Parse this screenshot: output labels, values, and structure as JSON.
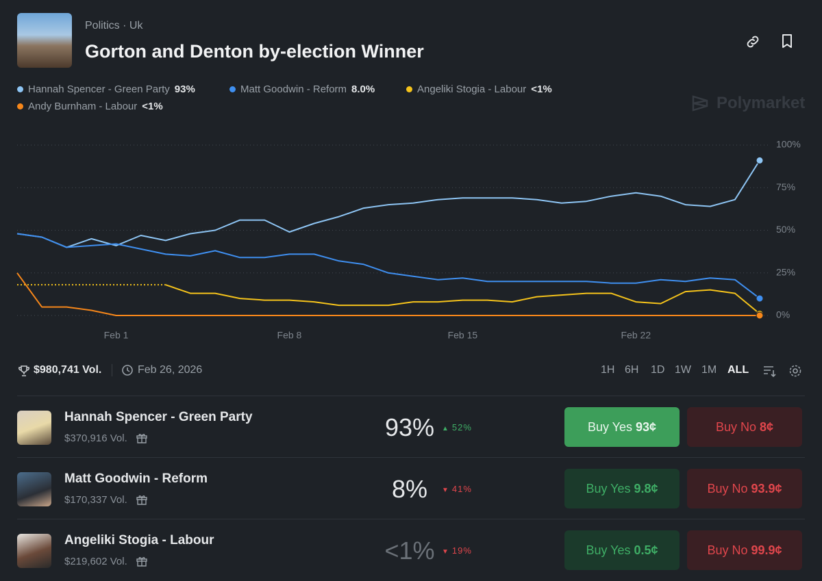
{
  "header": {
    "category": "Politics",
    "subcategory": "Uk",
    "title": "Gorton and Denton by-election Winner"
  },
  "brand": "Polymarket",
  "chart_data": {
    "type": "line",
    "categories": [
      null,
      null,
      null,
      null,
      "Feb 1",
      null,
      null,
      null,
      null,
      null,
      null,
      "Feb 8",
      null,
      null,
      null,
      null,
      null,
      null,
      "Feb 15",
      null,
      null,
      null,
      null,
      null,
      null,
      "Feb 22",
      null,
      null,
      null,
      null,
      null
    ],
    "series": [
      {
        "name": "Hannah Spencer - Green Party",
        "color": "#8ec5f4",
        "current": "93%",
        "values": [
          48,
          46,
          40,
          45,
          41,
          47,
          44,
          48,
          50,
          56,
          56,
          49,
          54,
          58,
          63,
          65,
          66,
          68,
          69,
          69,
          69,
          68,
          66,
          67,
          70,
          72,
          70,
          65,
          64,
          68,
          91
        ]
      },
      {
        "name": "Matt Goodwin - Reform",
        "color": "#3f8ff0",
        "current": "8.0%",
        "values": [
          48,
          46,
          40,
          41,
          42,
          39,
          36,
          35,
          38,
          34,
          34,
          36,
          36,
          32,
          30,
          25,
          23,
          21,
          22,
          20,
          20,
          20,
          20,
          20,
          19,
          19,
          21,
          20,
          22,
          21,
          10
        ]
      },
      {
        "name": "Angeliki Stogia - Labour",
        "color": "#f5c31b",
        "current": "<1%",
        "values": [
          null,
          null,
          null,
          null,
          null,
          null,
          18,
          13,
          13,
          10,
          9,
          9,
          8,
          6,
          6,
          6,
          8,
          8,
          9,
          9,
          8,
          11,
          12,
          13,
          13,
          8,
          7,
          14,
          15,
          13,
          1
        ]
      },
      {
        "name": "Andy Burnham - Labour",
        "color": "#f7871a",
        "current": "<1%",
        "values": [
          25,
          5,
          5,
          3,
          0,
          0,
          0,
          0,
          0,
          0,
          0,
          0,
          0,
          0,
          0,
          0,
          0,
          0,
          0,
          0,
          0,
          0,
          0,
          0,
          0,
          0,
          0,
          0,
          0,
          0,
          0
        ]
      }
    ],
    "ylim": [
      0,
      100
    ],
    "yticks": [
      {
        "value": 0,
        "label": "0%"
      },
      {
        "value": 25,
        "label": "25%"
      },
      {
        "value": 50,
        "label": "50%"
      },
      {
        "value": 75,
        "label": "75%"
      },
      {
        "value": 100,
        "label": "100%"
      }
    ],
    "grid": true
  },
  "stats": {
    "volume": "$980,741 Vol.",
    "end_date": "Feb 26, 2026"
  },
  "ranges": [
    "1H",
    "6H",
    "1D",
    "1W",
    "1M",
    "ALL"
  ],
  "active_range": "ALL",
  "outcomes": [
    {
      "name": "Hannah Spencer - Green Party",
      "volume": "$370,916 Vol.",
      "chance": "93%",
      "change": "52%",
      "direction": "up",
      "yes_label": "Buy Yes",
      "yes_price": "93¢",
      "no_label": "Buy No",
      "no_price": "8¢"
    },
    {
      "name": "Matt Goodwin - Reform",
      "volume": "$170,337 Vol.",
      "chance": "8%",
      "change": "41%",
      "direction": "down",
      "yes_label": "Buy Yes",
      "yes_price": "9.8¢",
      "no_label": "Buy No",
      "no_price": "93.9¢"
    },
    {
      "name": "Angeliki Stogia - Labour",
      "volume": "$219,602 Vol.",
      "chance": "<1%",
      "change": "19%",
      "direction": "down",
      "yes_label": "Buy Yes",
      "yes_price": "0.5¢",
      "no_label": "Buy No",
      "no_price": "99.9¢"
    }
  ]
}
